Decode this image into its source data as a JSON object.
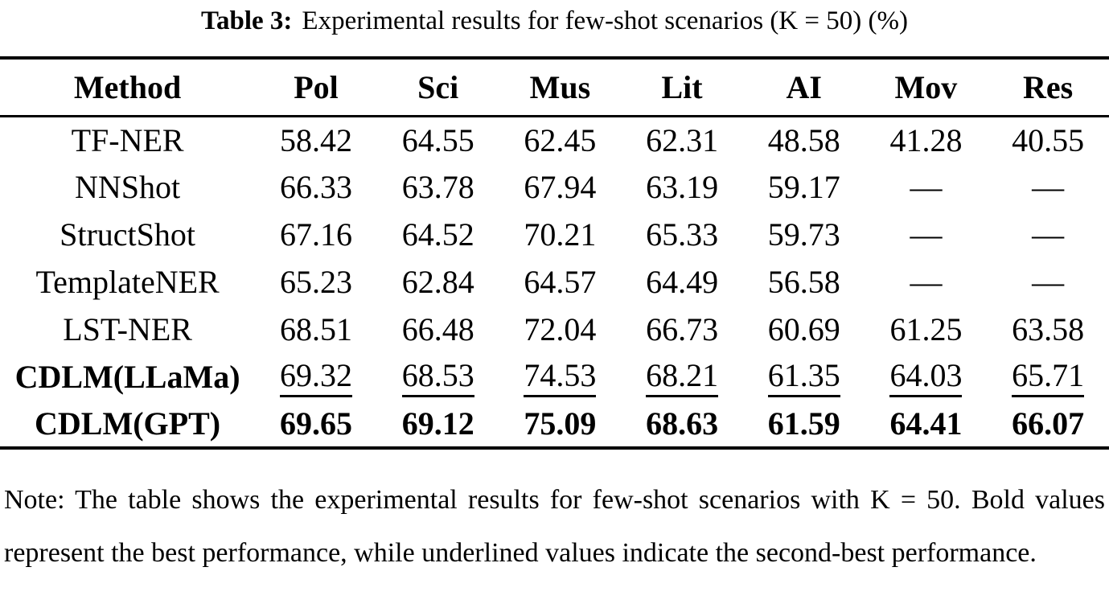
{
  "colors": {
    "text": "#000000",
    "background": "#ffffff",
    "rule": "#000000"
  },
  "caption": {
    "label": "Table 3:",
    "text": "Experimental results for few-shot scenarios (K = 50) (%)"
  },
  "table": {
    "columns": [
      "Method",
      "Pol",
      "Sci",
      "Mus",
      "Lit",
      "AI",
      "Mov",
      "Res"
    ],
    "rows": [
      {
        "method": "TF-NER",
        "style": "normal",
        "values": [
          "58.42",
          "64.55",
          "62.45",
          "62.31",
          "48.58",
          "41.28",
          "40.55"
        ]
      },
      {
        "method": "NNShot",
        "style": "normal",
        "values": [
          "66.33",
          "63.78",
          "67.94",
          "63.19",
          "59.17",
          "—",
          "—"
        ]
      },
      {
        "method": "StructShot",
        "style": "normal",
        "values": [
          "67.16",
          "64.52",
          "70.21",
          "65.33",
          "59.73",
          "—",
          "—"
        ]
      },
      {
        "method": "TemplateNER",
        "style": "normal",
        "values": [
          "65.23",
          "62.84",
          "64.57",
          "64.49",
          "56.58",
          "—",
          "—"
        ]
      },
      {
        "method": "LST-NER",
        "style": "normal",
        "values": [
          "68.51",
          "66.48",
          "72.04",
          "66.73",
          "60.69",
          "61.25",
          "63.58"
        ]
      },
      {
        "method": "CDLM(LLaMa)",
        "style": "underline",
        "values": [
          "69.32",
          "68.53",
          "74.53",
          "68.21",
          "61.35",
          "64.03",
          "65.71"
        ]
      },
      {
        "method": "CDLM(GPT)",
        "style": "bold",
        "values": [
          "69.65",
          "69.12",
          "75.09",
          "68.63",
          "61.59",
          "64.41",
          "66.07"
        ]
      }
    ]
  },
  "note": "Note: The table shows the experimental results for few-shot scenarios with K = 50. Bold values represent the best performance, while underlined values indicate the second-best performance."
}
